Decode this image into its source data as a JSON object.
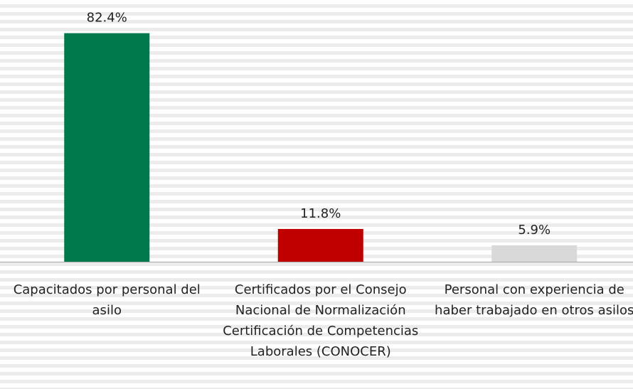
{
  "chart_data": {
    "type": "bar",
    "categories": [
      "Capacitados por personal del asilo",
      "Certificados por el Consejo Nacional de Normalización Certificación de Competencias Laborales (CONOCER)",
      "Personal con experiencia de haber trabajado en otros asilos"
    ],
    "values": [
      82.4,
      11.8,
      5.9
    ],
    "value_labels": [
      "82.4%",
      "11.8%",
      "5.9%"
    ],
    "colors": [
      "#007a4d",
      "#c00000",
      "#d9d9d9"
    ]
  }
}
